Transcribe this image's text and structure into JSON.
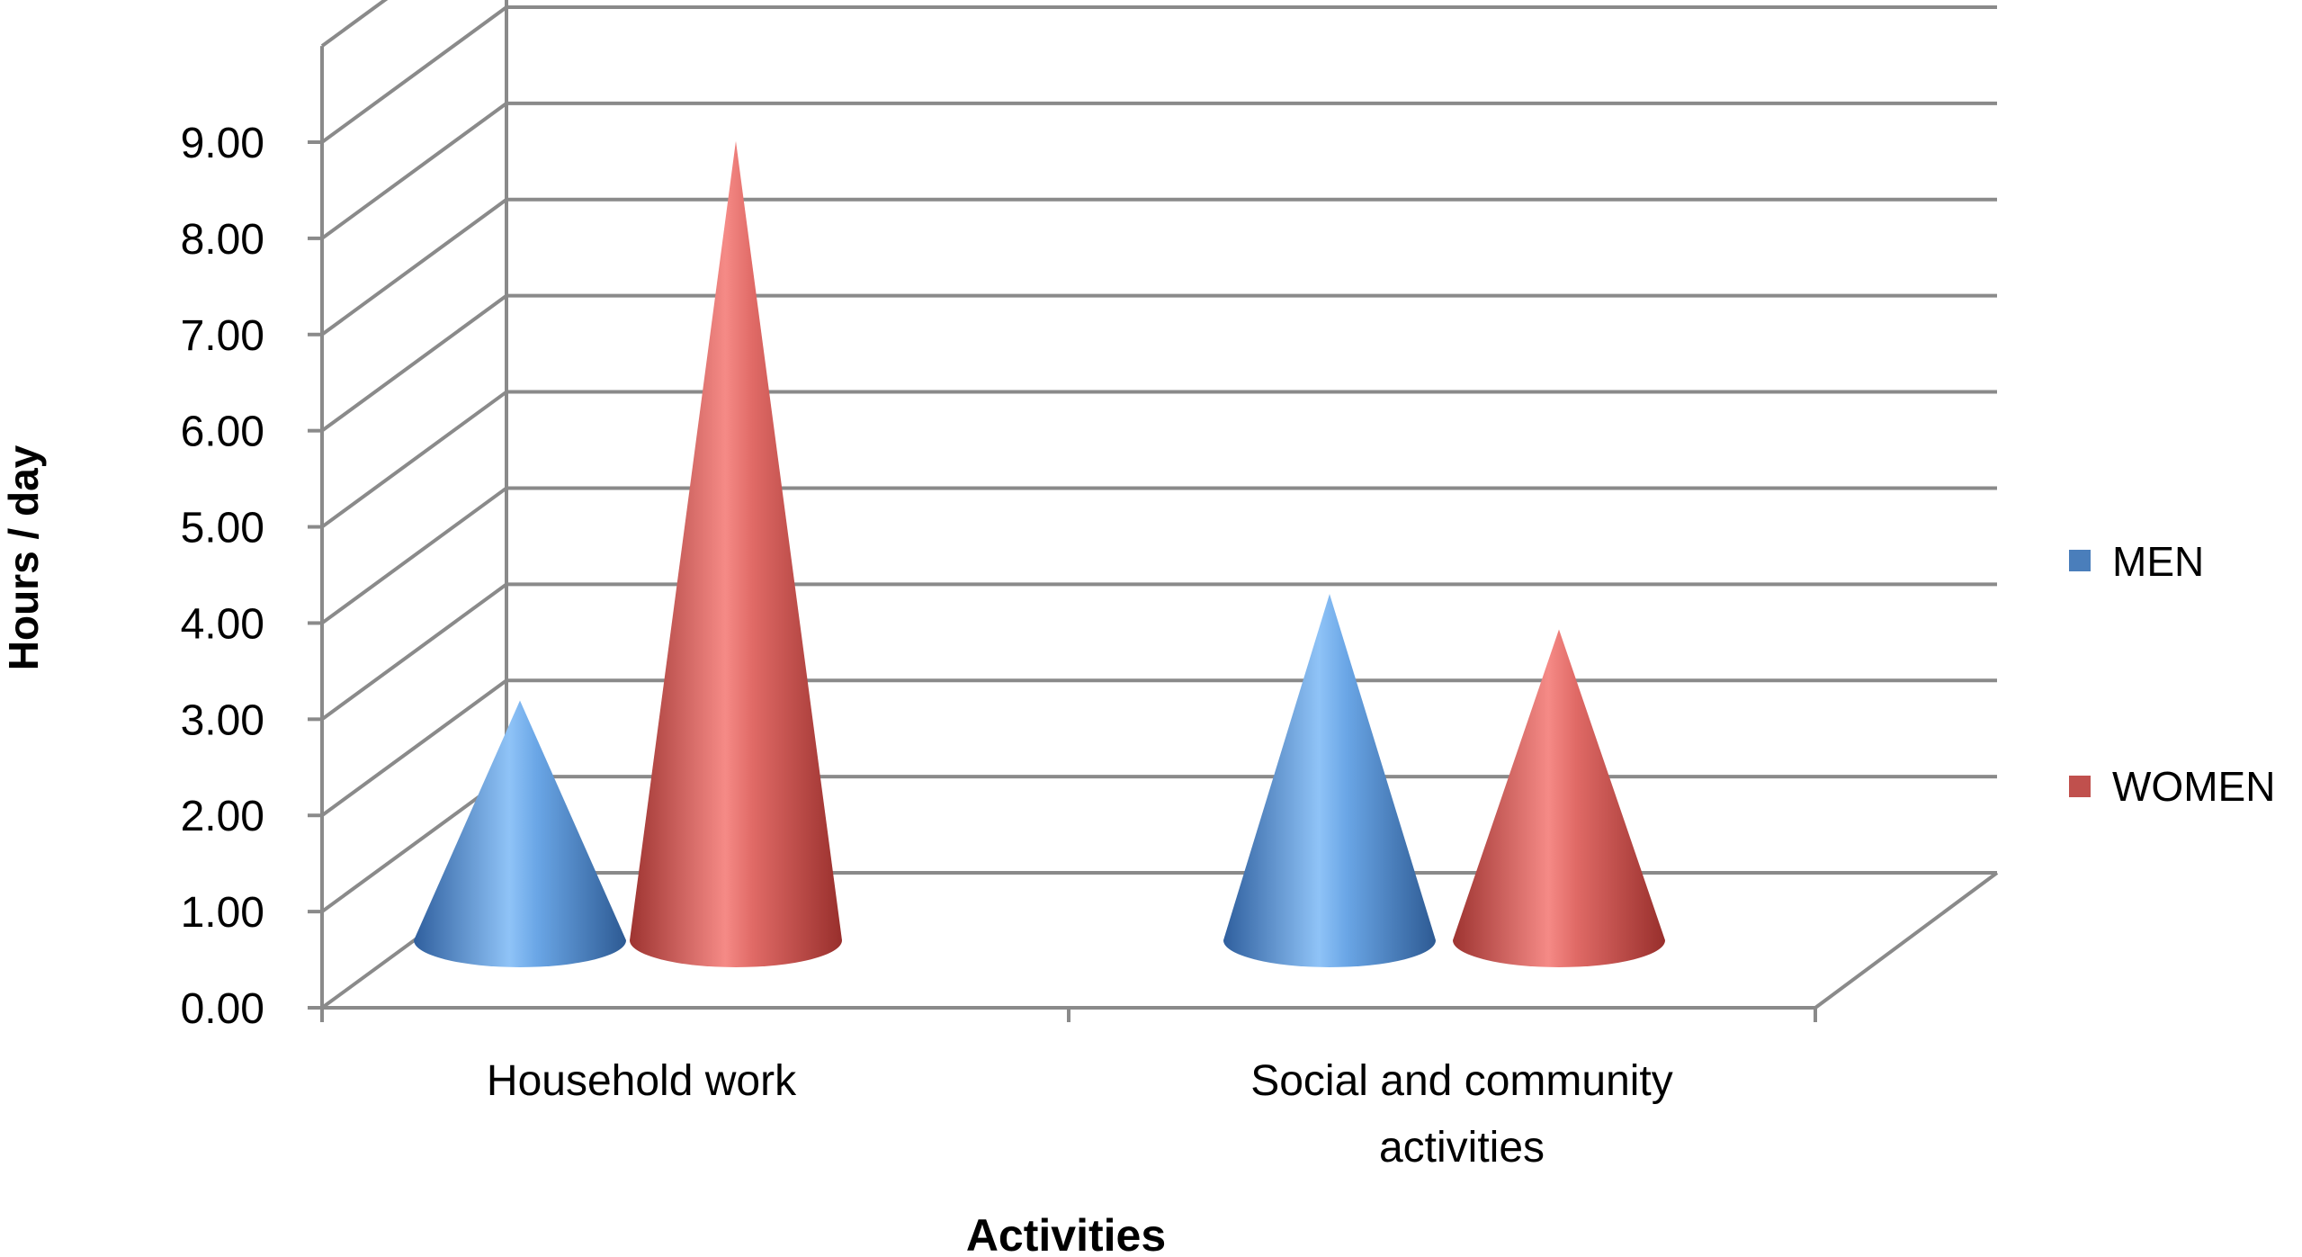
{
  "chart_data": {
    "type": "bar",
    "style": "3d-cone",
    "title": "",
    "xlabel": "Activities",
    "ylabel": "Hours / day",
    "ylim": [
      0,
      9
    ],
    "yticks": [
      "0.00",
      "1.00",
      "2.00",
      "3.00",
      "4.00",
      "5.00",
      "6.00",
      "7.00",
      "8.00",
      "9.00"
    ],
    "categories": [
      "Household work",
      "Social and community activities"
    ],
    "category_lines": [
      [
        "Household work"
      ],
      [
        "Social and community",
        "activities"
      ]
    ],
    "series": [
      {
        "name": "MEN",
        "values": [
          2.7,
          3.9
        ],
        "color": "#4a7ebb"
      },
      {
        "name": "WOMEN",
        "values": [
          9.0,
          3.5
        ],
        "color": "#c0504d"
      }
    ],
    "grid": true,
    "legend_position": "right"
  }
}
